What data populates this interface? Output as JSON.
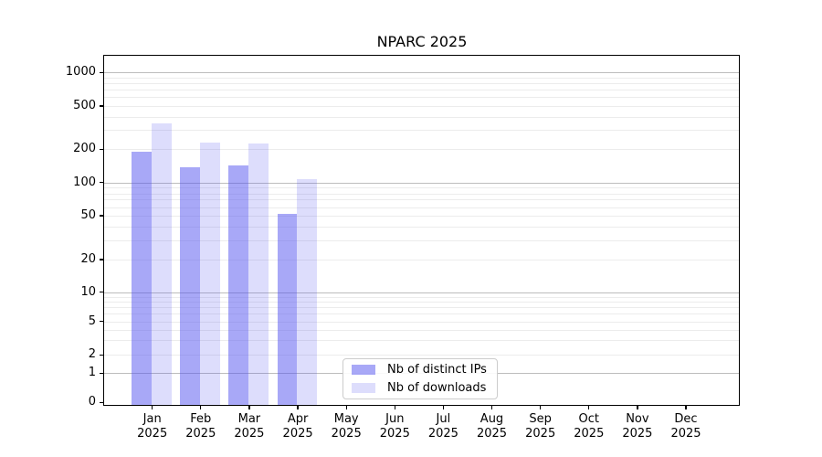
{
  "chart_data": {
    "type": "bar",
    "title": "NPARC 2025",
    "categories": [
      "Jan",
      "Feb",
      "Mar",
      "Apr",
      "May",
      "Jun",
      "Jul",
      "Aug",
      "Sep",
      "Oct",
      "Nov",
      "Dec"
    ],
    "x_year": "2025",
    "series": [
      {
        "name": "Nb of distinct IPs",
        "color": "rgba(81,81,239,0.50)",
        "values": [
          190,
          139,
          142,
          52,
          null,
          null,
          null,
          null,
          null,
          null,
          null,
          null
        ]
      },
      {
        "name": "Nb of downloads",
        "color": "rgba(81,81,239,0.195)",
        "values": [
          350,
          230,
          228,
          108,
          null,
          null,
          null,
          null,
          null,
          null,
          null,
          null
        ]
      }
    ],
    "y_ticks": [
      0,
      1,
      2,
      5,
      10,
      20,
      50,
      100,
      200,
      500,
      1000
    ],
    "scale": "symlog",
    "ylim": [
      0,
      1300
    ],
    "grid": {
      "major_lines": [
        1,
        10,
        100,
        1000
      ],
      "minor_multipliers": [
        2,
        3,
        4,
        5,
        6,
        7,
        8,
        9
      ],
      "major_color": "#bdbdbd",
      "minor_color": "#ececec"
    },
    "legend_position": "lower center (inside plot)"
  }
}
